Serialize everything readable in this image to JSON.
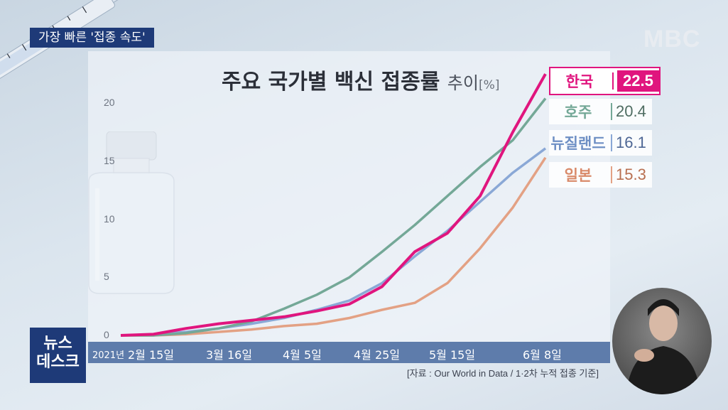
{
  "topic": "가장 빠른 '접종 속도'",
  "broadcaster": "MBC",
  "program": [
    "뉴스",
    "데스크"
  ],
  "chart_data": {
    "type": "line",
    "title": "주요 국가별 백신 접종률",
    "title_suffix": "추이",
    "unit": "[%]",
    "x_labels": [
      "2021년",
      "2월 15일",
      "3월 16일",
      "4월 5일",
      "4월 25일",
      "5월 15일",
      "6월 8일"
    ],
    "y_ticks": [
      0,
      5,
      10,
      15,
      20
    ],
    "ylim": [
      0,
      22.5
    ],
    "x": [
      "02-01",
      "02-15",
      "02-25",
      "03-06",
      "03-16",
      "03-26",
      "04-05",
      "04-15",
      "04-25",
      "05-05",
      "05-15",
      "05-25",
      "06-01",
      "06-08"
    ],
    "series": [
      {
        "name": "한국",
        "value_label": "22.5",
        "color": "#e0157e",
        "values": [
          0,
          0.1,
          0.6,
          1.0,
          1.3,
          1.6,
          2.1,
          2.7,
          4.2,
          7.2,
          8.8,
          12.0,
          17.5,
          22.5
        ]
      },
      {
        "name": "호주",
        "value_label": "20.4",
        "color": "#74a897",
        "values": [
          0,
          0,
          0.2,
          0.6,
          1.2,
          2.3,
          3.5,
          5.0,
          7.2,
          9.5,
          12.0,
          14.5,
          16.8,
          20.4
        ]
      },
      {
        "name": "뉴질랜드",
        "value_label": "16.1",
        "color": "#8aa8d6",
        "values": [
          0,
          0.1,
          0.3,
          0.6,
          1.0,
          1.5,
          2.2,
          3.0,
          4.5,
          6.8,
          9.0,
          11.5,
          14.0,
          16.1
        ]
      },
      {
        "name": "일본",
        "value_label": "15.3",
        "color": "#e3a184",
        "values": [
          0,
          0,
          0.1,
          0.3,
          0.5,
          0.8,
          1.0,
          1.5,
          2.2,
          2.8,
          4.5,
          7.5,
          11.0,
          15.3
        ]
      }
    ]
  },
  "source_note": "[자료 : Our World in Data / 1·2차 누적 접종 기준]"
}
